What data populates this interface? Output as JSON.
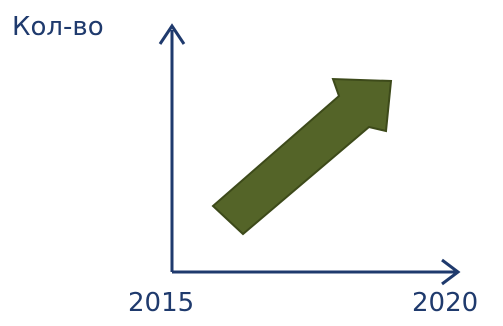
{
  "axes": {
    "y_label": "Кол-во",
    "x_start_label": "2015",
    "x_end_label": "2020"
  },
  "colors": {
    "axis": "#1f3a6d",
    "arrow_fill": "#546428",
    "arrow_stroke": "#3d4a1a"
  },
  "trend": {
    "direction": "up-right"
  }
}
